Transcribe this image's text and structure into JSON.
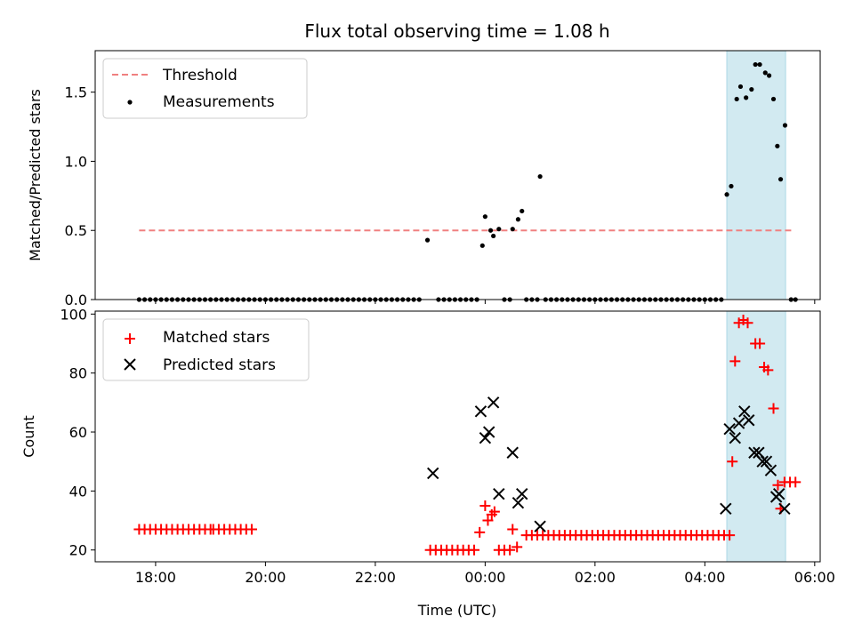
{
  "chart_data": [
    {
      "type": "scatter",
      "title": "Flux total observing time = 1.08 h",
      "xlabel": "",
      "ylabel": "Matched/Predicted stars",
      "xlim": [
        -7.1,
        6.1
      ],
      "ylim": [
        0,
        1.8
      ],
      "x_ticks": [
        -6,
        -4,
        -2,
        0,
        2,
        4,
        6
      ],
      "y_ticks": [
        0.0,
        0.5,
        1.0,
        1.5
      ],
      "y_tick_labels": [
        "0.0",
        "0.5",
        "1.0",
        "1.5"
      ],
      "highlight_span": [
        4.4,
        5.47
      ],
      "legend_position": "top-left",
      "legend": [
        "Threshold",
        "Measurements"
      ],
      "threshold": {
        "name": "Threshold",
        "y": 0.5,
        "x_range": [
          -6.3,
          5.6
        ],
        "color": "#f08080"
      },
      "series": [
        {
          "name": "Measurements",
          "color": "#000000",
          "points": [
            [
              -1.05,
              0.43
            ],
            [
              -0.05,
              0.39
            ],
            [
              0.0,
              0.6
            ],
            [
              0.1,
              0.5
            ],
            [
              0.15,
              0.46
            ],
            [
              0.25,
              0.51
            ],
            [
              0.5,
              0.51
            ],
            [
              0.6,
              0.58
            ],
            [
              0.67,
              0.64
            ],
            [
              1.0,
              0.89
            ],
            [
              4.4,
              0.76
            ],
            [
              4.48,
              0.82
            ],
            [
              4.58,
              1.45
            ],
            [
              4.65,
              1.54
            ],
            [
              4.75,
              1.46
            ],
            [
              4.85,
              1.52
            ],
            [
              4.92,
              1.7
            ],
            [
              5.0,
              1.7
            ],
            [
              5.1,
              1.64
            ],
            [
              5.17,
              1.62
            ],
            [
              5.25,
              1.45
            ],
            [
              5.32,
              1.11
            ],
            [
              5.38,
              0.87
            ],
            [
              5.46,
              1.26
            ]
          ],
          "zero_runs": [
            [
              -6.3,
              -1.15,
              0.1
            ],
            [
              -0.85,
              -0.1,
              0.1
            ],
            [
              0.35,
              0.45,
              0.1
            ],
            [
              0.75,
              0.95,
              0.1
            ],
            [
              1.1,
              4.3,
              0.1
            ],
            [
              5.57,
              5.65,
              0.08
            ]
          ]
        }
      ]
    },
    {
      "type": "scatter",
      "title": "",
      "xlabel": "Time (UTC)",
      "ylabel": "Count",
      "xlim": [
        -7.1,
        6.1
      ],
      "ylim": [
        16,
        101
      ],
      "x_ticks": [
        -6,
        -4,
        -2,
        0,
        2,
        4,
        6
      ],
      "x_tick_labels": [
        "18:00",
        "20:00",
        "22:00",
        "00:00",
        "02:00",
        "04:00",
        "06:00"
      ],
      "y_ticks": [
        20,
        40,
        60,
        80,
        100
      ],
      "y_tick_labels": [
        "20",
        "40",
        "60",
        "80",
        "100"
      ],
      "highlight_span": [
        4.4,
        5.47
      ],
      "legend_position": "top-left",
      "legend": [
        "Matched stars",
        "Predicted stars"
      ],
      "series": [
        {
          "name": "Matched stars",
          "color": "#ff0000",
          "marker": "plus",
          "points": [
            [
              -0.1,
              26
            ],
            [
              0.0,
              35
            ],
            [
              0.05,
              30
            ],
            [
              0.12,
              32
            ],
            [
              0.17,
              33
            ],
            [
              0.5,
              27
            ],
            [
              0.58,
              21
            ],
            [
              4.5,
              50
            ],
            [
              4.55,
              84
            ],
            [
              4.62,
              97
            ],
            [
              4.7,
              98
            ],
            [
              4.78,
              97
            ],
            [
              4.92,
              90
            ],
            [
              5.0,
              90
            ],
            [
              5.08,
              82
            ],
            [
              5.15,
              81
            ],
            [
              5.25,
              68
            ],
            [
              5.33,
              42
            ],
            [
              5.38,
              34
            ],
            [
              5.45,
              43
            ],
            [
              5.55,
              43
            ],
            [
              5.65,
              43
            ]
          ],
          "runs": [
            [
              -6.3,
              -5.0,
              0.1,
              27
            ],
            [
              -4.95,
              -4.25,
              0.1,
              27
            ],
            [
              -1.0,
              -0.2,
              0.1,
              20
            ],
            [
              0.25,
              0.45,
              0.1,
              20
            ],
            [
              0.75,
              4.45,
              0.1,
              25
            ]
          ]
        },
        {
          "name": "Predicted stars",
          "color": "#000000",
          "marker": "x",
          "points": [
            [
              -0.95,
              46
            ],
            [
              -0.08,
              67
            ],
            [
              0.0,
              58
            ],
            [
              0.07,
              60
            ],
            [
              0.15,
              70
            ],
            [
              0.25,
              39
            ],
            [
              0.5,
              53
            ],
            [
              0.6,
              36
            ],
            [
              0.67,
              39
            ],
            [
              1.0,
              28
            ],
            [
              4.38,
              34
            ],
            [
              4.45,
              61
            ],
            [
              4.55,
              58
            ],
            [
              4.62,
              63
            ],
            [
              4.72,
              67
            ],
            [
              4.8,
              64
            ],
            [
              4.9,
              53
            ],
            [
              4.98,
              53
            ],
            [
              5.05,
              50
            ],
            [
              5.12,
              50
            ],
            [
              5.2,
              47
            ],
            [
              5.3,
              38
            ],
            [
              5.35,
              39
            ],
            [
              5.45,
              34
            ]
          ]
        }
      ]
    }
  ]
}
